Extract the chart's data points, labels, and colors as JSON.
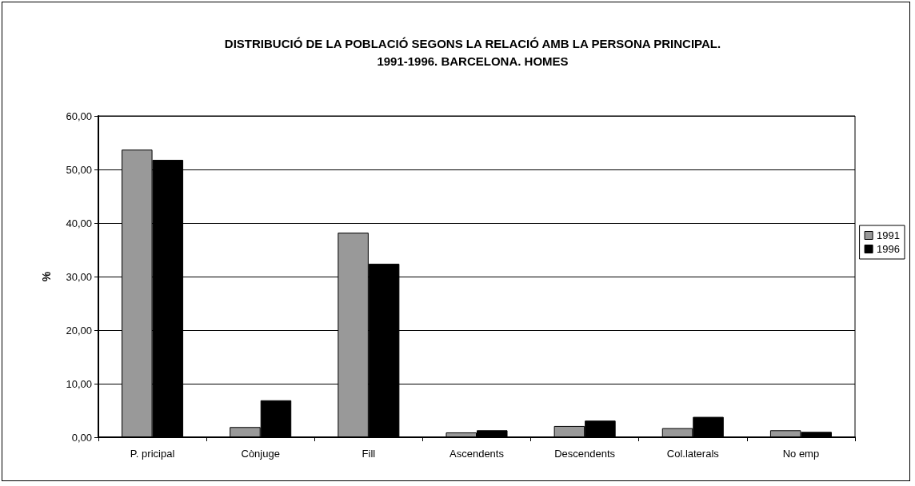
{
  "chart_data": {
    "type": "bar",
    "title": "DISTRIBUCIÓ DE LA POBLACIÓ SEGONS LA RELACIÓ AMB LA PERSONA PRINCIPAL.\n1991-1996. BARCELONA. HOMES",
    "ylabel": "%",
    "categories": [
      "P. pricipal",
      "Cònjuge",
      "Fill",
      "Ascendents",
      "Descendents",
      "Col.laterals",
      "No emp"
    ],
    "series": [
      {
        "name": "1991",
        "color": "#999999",
        "values": [
          53.7,
          1.9,
          38.2,
          0.9,
          2.1,
          1.7,
          1.3
        ]
      },
      {
        "name": "1996",
        "color": "#000000",
        "values": [
          51.8,
          6.9,
          32.4,
          1.3,
          3.1,
          3.8,
          1.0
        ]
      }
    ],
    "ylim": [
      0,
      60
    ],
    "yticks": [
      {
        "value": 0,
        "label": "0,00"
      },
      {
        "value": 10,
        "label": "10,00"
      },
      {
        "value": 20,
        "label": "20,00"
      },
      {
        "value": 30,
        "label": "30,00"
      },
      {
        "value": 40,
        "label": "40,00"
      },
      {
        "value": 50,
        "label": "50,00"
      },
      {
        "value": 60,
        "label": "60,00"
      }
    ],
    "grid": "y",
    "legend": "right"
  }
}
